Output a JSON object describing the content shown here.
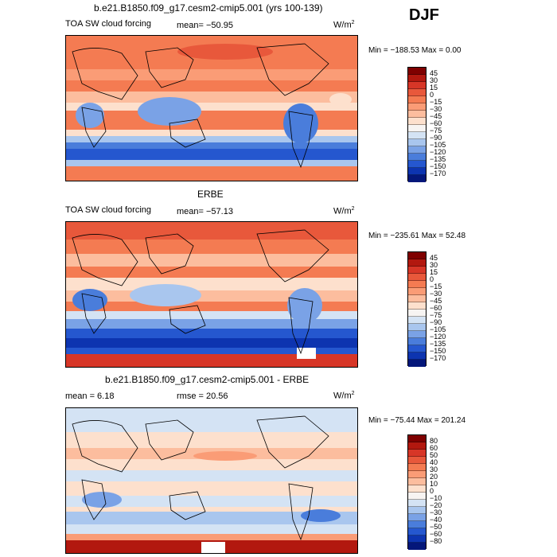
{
  "season": "DJF",
  "panels": [
    {
      "title": "b.e21.B1850.f09_g17.cesm2-cmip5.001 (yrs 100-139)",
      "field": "TOA SW cloud forcing",
      "mean": "mean= −50.95",
      "units": "W/m",
      "units_exp": "2",
      "minmax": "Min = −188.53 Max =    0.00"
    },
    {
      "title": "ERBE",
      "field": "TOA SW cloud forcing",
      "mean": "mean= −57.13",
      "units": "W/m",
      "units_exp": "2",
      "minmax": "Min = −235.61 Max =  52.48"
    },
    {
      "title": "b.e21.B1850.f09_g17.cesm2-cmip5.001 - ERBE",
      "field": "",
      "mean": "mean =    6.18",
      "rmse": "rmse =   20.56",
      "units": "W/m",
      "units_exp": "2",
      "minmax": "Min = −75.44 Max = 201.24"
    }
  ],
  "chart_data": [
    {
      "type": "heatmap",
      "title": "b.e21.B1850.f09_g17.cesm2-cmip5.001 (yrs 100-139)",
      "variable": "TOA SW cloud forcing",
      "units": "W/m2",
      "mean": -50.95,
      "min": -188.53,
      "max": 0.0,
      "colorbar_levels": [
        45,
        30,
        15,
        0,
        -15,
        -30,
        -45,
        -60,
        -75,
        -90,
        -105,
        -120,
        -135,
        -150,
        -170
      ],
      "colorbar_colors": [
        "#7f0000",
        "#b2180f",
        "#d73627",
        "#e8583b",
        "#f47b52",
        "#fa9c76",
        "#fcbd9e",
        "#fde0cd",
        "#f7f4f2",
        "#d4e3f4",
        "#a9c6ee",
        "#7aa2e6",
        "#4a7ddb",
        "#2557cf",
        "#0d34b0",
        "#04177a"
      ]
    },
    {
      "type": "heatmap",
      "title": "ERBE",
      "variable": "TOA SW cloud forcing",
      "units": "W/m2",
      "mean": -57.13,
      "min": -235.61,
      "max": 52.48,
      "colorbar_levels": [
        45,
        30,
        15,
        0,
        -15,
        -30,
        -45,
        -60,
        -75,
        -90,
        -105,
        -120,
        -135,
        -150,
        -170
      ],
      "colorbar_colors": [
        "#7f0000",
        "#b2180f",
        "#d73627",
        "#e8583b",
        "#f47b52",
        "#fa9c76",
        "#fcbd9e",
        "#fde0cd",
        "#f7f4f2",
        "#d4e3f4",
        "#a9c6ee",
        "#7aa2e6",
        "#4a7ddb",
        "#2557cf",
        "#0d34b0",
        "#04177a"
      ]
    },
    {
      "type": "heatmap",
      "title": "b.e21.B1850.f09_g17.cesm2-cmip5.001 - ERBE",
      "units": "W/m2",
      "mean": 6.18,
      "rmse": 20.56,
      "min": -75.44,
      "max": 201.24,
      "colorbar_levels": [
        80,
        60,
        50,
        40,
        30,
        20,
        10,
        0,
        -10,
        -20,
        -30,
        -40,
        -50,
        -60,
        -80
      ],
      "colorbar_colors": [
        "#7f0000",
        "#b2180f",
        "#d73627",
        "#e8583b",
        "#f47b52",
        "#fa9c76",
        "#fcbd9e",
        "#fde0cd",
        "#f7f4f2",
        "#d4e3f4",
        "#a9c6ee",
        "#7aa2e6",
        "#4a7ddb",
        "#2557cf",
        "#0d34b0",
        "#04177a"
      ]
    }
  ]
}
